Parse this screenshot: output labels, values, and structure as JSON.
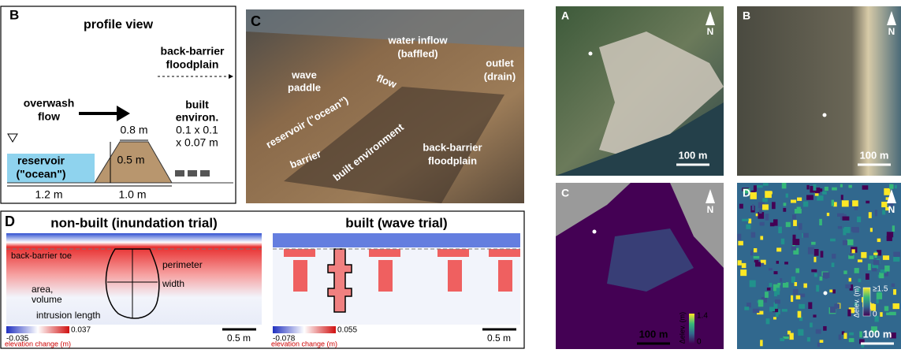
{
  "panel_b": {
    "label": "B",
    "title": "profile view",
    "floodplain": [
      "back-barrier",
      "floodplain"
    ],
    "overwash": [
      "overwash",
      "flow"
    ],
    "built": [
      "built",
      "environ.",
      "0.1 x 0.1",
      "x 0.07 m"
    ],
    "reservoir": [
      "reservoir",
      "(\"ocean\")"
    ],
    "top_width": "0.8 m",
    "height": "0.5 m",
    "reservoir_length": "1.2 m",
    "barrier_length": "1.0 m"
  },
  "panel_c": {
    "label": "C",
    "inflow": [
      "water inflow",
      "(baffled)"
    ],
    "paddle": [
      "wave",
      "paddle"
    ],
    "flow": "flow",
    "outlet": [
      "outlet",
      "(drain)"
    ],
    "reservoir": "reservoir (\"ocean\")",
    "barrier": "barrier",
    "built": "built environment",
    "floodplain": [
      "back-barrier",
      "floodplain"
    ]
  },
  "panel_d": {
    "label": "D",
    "left_title": "non-built (inundation trial)",
    "right_title": "built (wave trial)",
    "toe": "back-barrier toe",
    "perimeter": "perimeter",
    "area": [
      "area,",
      "volume"
    ],
    "width": "width",
    "intrusion": "intrusion length",
    "left_colorbar": {
      "min": "-0.035",
      "max": "0.037",
      "label": "elevation change (m)"
    },
    "right_colorbar": {
      "min": "-0.078",
      "max": "0.055",
      "label": "elevation change (m)"
    },
    "scale_left": "0.5 m",
    "scale_right": "0.5 m"
  },
  "maps": {
    "labels": [
      "A",
      "B",
      "C",
      "D"
    ],
    "north": [
      "N",
      "N",
      "N",
      "N"
    ],
    "scales": [
      "100 m",
      "100 m",
      "100 m",
      "100 m"
    ],
    "colorbar_c": {
      "label": "Δelev. (m)",
      "max": "1.4",
      "min": "0"
    },
    "colorbar_d": {
      "label": "Δelev. (m)",
      "max": "≥1.5",
      "min": "0"
    }
  }
}
